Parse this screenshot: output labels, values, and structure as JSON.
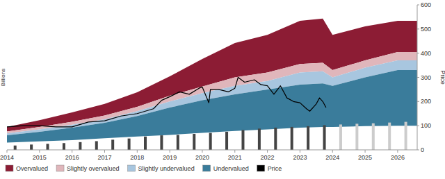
{
  "chart_data": {
    "type": "area",
    "y_label": "Price",
    "y2_label": "Billions",
    "xlim": [
      2014,
      2026.6
    ],
    "xticks": [
      2014,
      2015,
      2016,
      2017,
      2018,
      2019,
      2020,
      2021,
      2022,
      2023,
      2024,
      2025,
      2026
    ],
    "ylim": [
      0,
      600
    ],
    "yticks": [
      0,
      100,
      200,
      300,
      400,
      500,
      600
    ],
    "y2lim": [
      0,
      600
    ],
    "grid": false,
    "legend": "bottom",
    "series": [
      {
        "name": "Overvalued",
        "type": "area",
        "color": "#8c1c34",
        "x": [
          2014,
          2015,
          2016,
          2017,
          2018,
          2019,
          2020,
          2021,
          2022,
          2023,
          2023.7,
          2024,
          2025,
          2026,
          2026.6
        ],
        "low": [
          76,
          95,
          116,
          142,
          178,
          224,
          262,
          300,
          320,
          355,
          360,
          330,
          370,
          405,
          405
        ],
        "values": [
          95,
          123,
          155,
          190,
          238,
          304,
          376,
          442,
          476,
          534,
          543,
          476,
          511,
          534,
          534
        ]
      },
      {
        "name": "Slightly overvalued",
        "type": "area",
        "color": "#e0b6bb",
        "x": [
          2014,
          2015,
          2016,
          2017,
          2018,
          2019,
          2020,
          2021,
          2022,
          2023,
          2023.7,
          2024,
          2025,
          2026,
          2026.6
        ],
        "low": [
          68,
          85,
          104,
          126,
          160,
          200,
          235,
          265,
          285,
          320,
          325,
          300,
          340,
          370,
          370
        ],
        "values": [
          76,
          95,
          116,
          142,
          178,
          224,
          262,
          300,
          320,
          355,
          360,
          330,
          370,
          405,
          405
        ]
      },
      {
        "name": "Slightly undervalued",
        "type": "area",
        "color": "#a8c6df",
        "x": [
          2014,
          2015,
          2016,
          2017,
          2018,
          2019,
          2020,
          2021,
          2022,
          2023,
          2023.7,
          2024,
          2025,
          2026,
          2026.6
        ],
        "low": [
          60,
          75,
          92,
          112,
          140,
          175,
          205,
          230,
          250,
          270,
          275,
          265,
          300,
          330,
          330
        ],
        "values": [
          68,
          85,
          104,
          126,
          160,
          200,
          235,
          265,
          285,
          320,
          325,
          300,
          340,
          370,
          370
        ]
      },
      {
        "name": "Undervalued",
        "type": "area",
        "color": "#3a7c9b",
        "x": [
          2014,
          2015,
          2016,
          2017,
          2018,
          2019,
          2020,
          2021,
          2022,
          2023,
          2023.7,
          2024,
          2025,
          2026,
          2026.6
        ],
        "low": [
          30,
          35,
          40,
          48,
          55,
          62,
          70,
          78,
          85,
          92,
          95,
          95,
          98,
          100,
          100
        ],
        "values": [
          60,
          75,
          92,
          112,
          140,
          175,
          205,
          230,
          250,
          270,
          275,
          265,
          300,
          330,
          330
        ]
      },
      {
        "name": "Price",
        "type": "line",
        "color": "#000000",
        "x": [
          2014,
          2014.5,
          2015,
          2015.5,
          2016,
          2016.5,
          2017,
          2017.5,
          2018,
          2018.5,
          2018.75,
          2019,
          2019.3,
          2019.6,
          2019.9,
          2020,
          2020.2,
          2020.25,
          2020.5,
          2020.8,
          2021,
          2021.1,
          2021.3,
          2021.6,
          2021.8,
          2022,
          2022.2,
          2022.4,
          2022.6,
          2022.8,
          2023,
          2023.2,
          2023.3,
          2023.5,
          2023.6,
          2023.7,
          2023.8
        ],
        "values": [
          95,
          100,
          100,
          95,
          95,
          115,
          120,
          140,
          150,
          170,
          205,
          220,
          240,
          230,
          255,
          260,
          195,
          250,
          250,
          240,
          255,
          300,
          280,
          290,
          270,
          265,
          230,
          265,
          215,
          200,
          195,
          170,
          160,
          190,
          215,
          200,
          175
        ]
      },
      {
        "type": "bar",
        "axis": "y2",
        "x": [
          2014.25,
          2014.75,
          2015.25,
          2015.75,
          2016.25,
          2016.75,
          2017.25,
          2017.75,
          2018.25,
          2018.75,
          2019.25,
          2019.75,
          2020.25,
          2020.75,
          2021.25,
          2021.75,
          2022.25,
          2022.75,
          2023.25,
          2023.75,
          2024.25,
          2024.75,
          2025.25,
          2025.75,
          2026.25
        ],
        "values": [
          18,
          22,
          25,
          28,
          32,
          36,
          42,
          47,
          55,
          60,
          62,
          66,
          70,
          75,
          82,
          88,
          92,
          95,
          98,
          102,
          105,
          108,
          110,
          113,
          116
        ],
        "colors": [
          "#444444",
          "#444444",
          "#444444",
          "#444444",
          "#444444",
          "#444444",
          "#444444",
          "#444444",
          "#444444",
          "#444444",
          "#444444",
          "#444444",
          "#444444",
          "#444444",
          "#444444",
          "#444444",
          "#444444",
          "#444444",
          "#444444",
          "#444444",
          "#cccccc",
          "#cccccc",
          "#cccccc",
          "#cccccc",
          "#cccccc"
        ]
      }
    ]
  }
}
